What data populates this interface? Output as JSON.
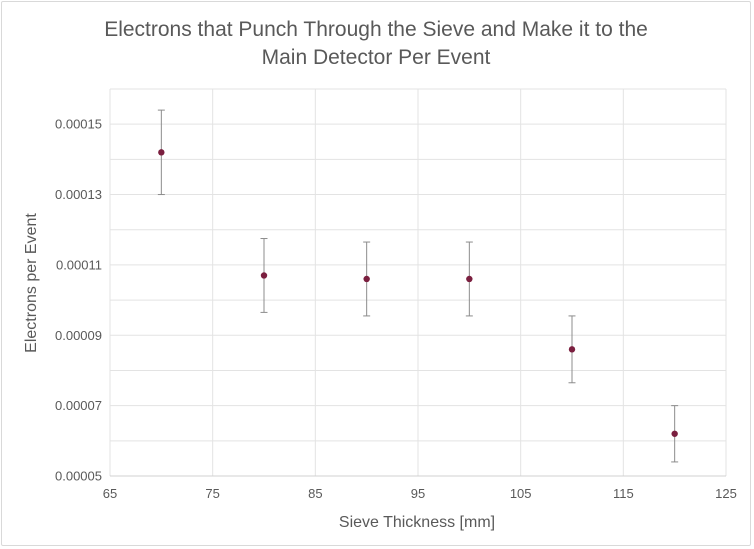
{
  "chart_data": {
    "type": "scatter",
    "title_lines": [
      "Electrons that Punch Through the Sieve and Make it to the",
      "Main Detector Per Event"
    ],
    "xlabel": "Sieve Thickness [mm]",
    "ylabel": "Electrons per Event",
    "xlim": [
      65,
      125
    ],
    "ylim": [
      5e-05,
      0.00016
    ],
    "x_ticks": [
      65,
      75,
      85,
      95,
      105,
      115,
      125
    ],
    "x_tick_labels": [
      "65",
      "75",
      "85",
      "95",
      "105",
      "115",
      "125"
    ],
    "y_ticks": [
      5e-05,
      7e-05,
      9e-05,
      0.00011,
      0.00013,
      0.00015
    ],
    "y_tick_labels": [
      "0.00005",
      "0.00007",
      "0.00009",
      "0.00011",
      "0.00013",
      "0.00015"
    ],
    "grid": true,
    "x": [
      70,
      80,
      90,
      100,
      110,
      120
    ],
    "y": [
      0.000142,
      0.000107,
      0.000106,
      0.000106,
      8.6e-05,
      6.2e-05
    ],
    "err_low": [
      1.2e-05,
      1.05e-05,
      1.05e-05,
      1.05e-05,
      9.5e-06,
      8e-06
    ],
    "err_high": [
      1.2e-05,
      1.05e-05,
      1.05e-05,
      1.05e-05,
      9.5e-06,
      8e-06
    ],
    "marker_color": "#7b1f3f",
    "errorbar_color": "#8c8c8c",
    "gridline_color": "#e3e3e3"
  }
}
